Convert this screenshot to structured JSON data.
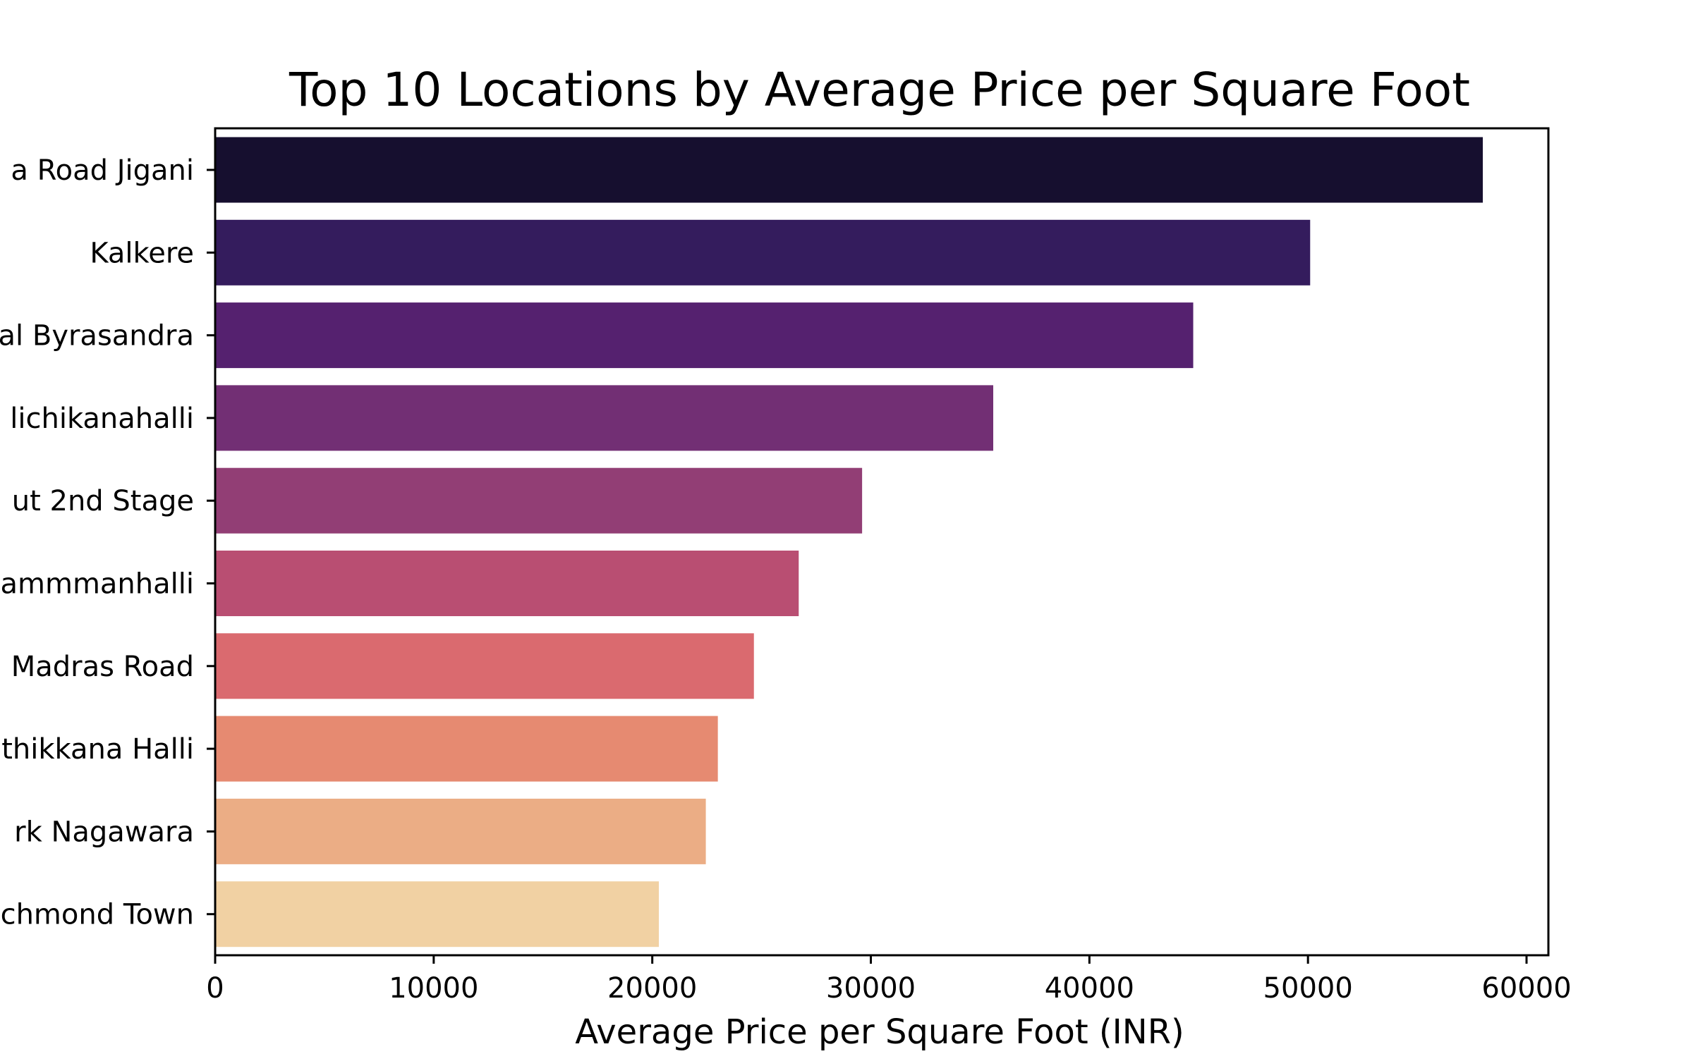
{
  "chart_data": {
    "type": "bar",
    "orientation": "horizontal",
    "title": "Top 10 Locations by Average Price per Square Foot",
    "xlabel": "Average Price per Square Foot (INR)",
    "ylabel": "",
    "xlim": [
      0,
      61000
    ],
    "x_ticks": [
      "0",
      "10000",
      "20000",
      "30000",
      "40000",
      "50000",
      "60000"
    ],
    "grid": false,
    "categories": [
      "a Road Jigani",
      "Kalkere",
      "al Byrasandra",
      "lichikanahalli",
      "ut 2nd Stage",
      "ammmanhalli",
      "Madras Road",
      "thikkana Halli",
      "rk Nagawara",
      "chmond Town"
    ],
    "values": [
      58000,
      50100,
      44750,
      35600,
      29600,
      26700,
      24650,
      23000,
      22450,
      20300
    ],
    "colors": [
      "#160f2f",
      "#341c5d",
      "#55216f",
      "#722f74",
      "#923e75",
      "#b94e72",
      "#da6a6f",
      "#e68a71",
      "#ebad85",
      "#f1d1a3"
    ]
  }
}
